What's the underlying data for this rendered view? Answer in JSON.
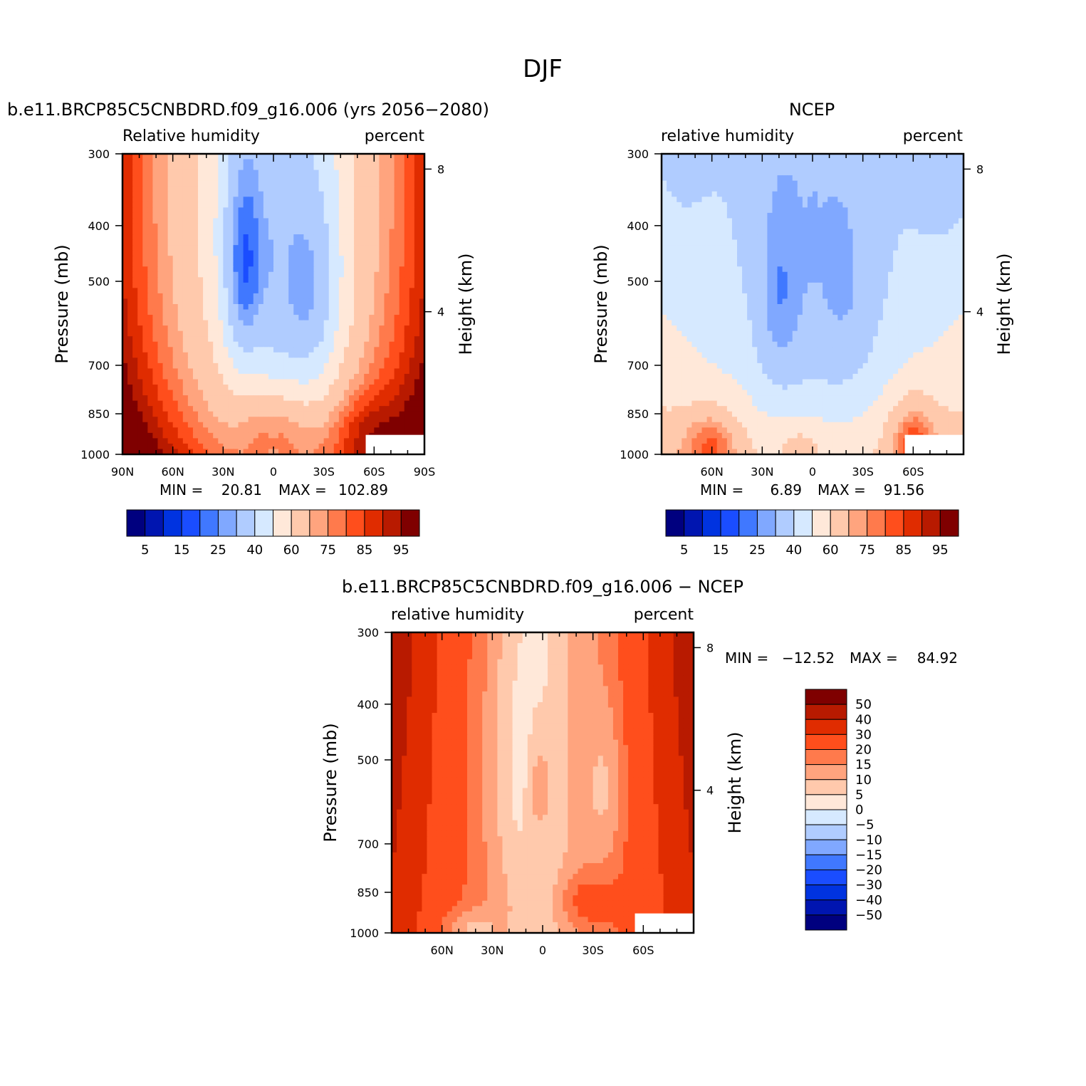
{
  "page_title": "DJF",
  "chart_data": [
    {
      "type": "heatmap",
      "title": "b.e11.BRCP85C5CNBDRD.f09_g16.006 (yrs 2056−2080)",
      "left_label": "Relative humidity",
      "right_label": "percent",
      "xlabel": "",
      "ylabel": "Pressure (mb)",
      "y2label": "Height (km)",
      "x_ticks": [
        "90N",
        "60N",
        "30N",
        "0",
        "30S",
        "60S",
        "90S"
      ],
      "y_ticks": [
        "300",
        "400",
        "500",
        "700",
        "850",
        "1000"
      ],
      "y2_ticks": [
        "8",
        "4"
      ],
      "stats": {
        "min_label": "MIN =",
        "min": "20.81",
        "max_label": "MAX =",
        "max": "102.89"
      },
      "colorbar_labels": [
        "5",
        "15",
        "25",
        "40",
        "60",
        "75",
        "85",
        "95"
      ],
      "field": "model"
    },
    {
      "type": "heatmap",
      "title": "NCEP",
      "left_label": "relative humidity",
      "right_label": "percent",
      "xlabel": "",
      "ylabel": "Pressure (mb)",
      "y2label": "Height (km)",
      "x_ticks": [
        "60N",
        "30N",
        "0",
        "30S",
        "60S"
      ],
      "y_ticks": [
        "300",
        "400",
        "500",
        "700",
        "850",
        "1000"
      ],
      "y2_ticks": [
        "8",
        "4"
      ],
      "stats": {
        "min_label": "MIN =",
        "min": "6.89",
        "max_label": "MAX =",
        "max": "91.56"
      },
      "colorbar_labels": [
        "5",
        "15",
        "25",
        "40",
        "60",
        "75",
        "85",
        "95"
      ],
      "field": "obs"
    },
    {
      "type": "heatmap",
      "title": "b.e11.BRCP85C5CNBDRD.f09_g16.006 − NCEP",
      "left_label": "relative humidity",
      "right_label": "percent",
      "xlabel": "",
      "ylabel": "Pressure (mb)",
      "y2label": "Height (km)",
      "x_ticks": [
        "60N",
        "30N",
        "0",
        "30S",
        "60S"
      ],
      "y_ticks": [
        "300",
        "400",
        "500",
        "700",
        "850",
        "1000"
      ],
      "y2_ticks": [
        "8",
        "4"
      ],
      "stats": {
        "min_label": "MIN =",
        "min": "−12.52",
        "max_label": "MAX =",
        "max": "84.92"
      },
      "colorbar_labels": [
        "50",
        "40",
        "30",
        "20",
        "15",
        "10",
        "5",
        "0",
        "−5",
        "−10",
        "−15",
        "−20",
        "−30",
        "−40",
        "−50"
      ],
      "field": "diff"
    }
  ],
  "palette": [
    "#00007f",
    "#0015b0",
    "#0033e0",
    "#1a4dff",
    "#4078ff",
    "#80a8ff",
    "#b0ccff",
    "#d6e9ff",
    "#ffe8d9",
    "#ffc9ac",
    "#ffa47e",
    "#ff7a4c",
    "#ff4e1c",
    "#e02c00",
    "#b81a00",
    "#7f0000"
  ]
}
